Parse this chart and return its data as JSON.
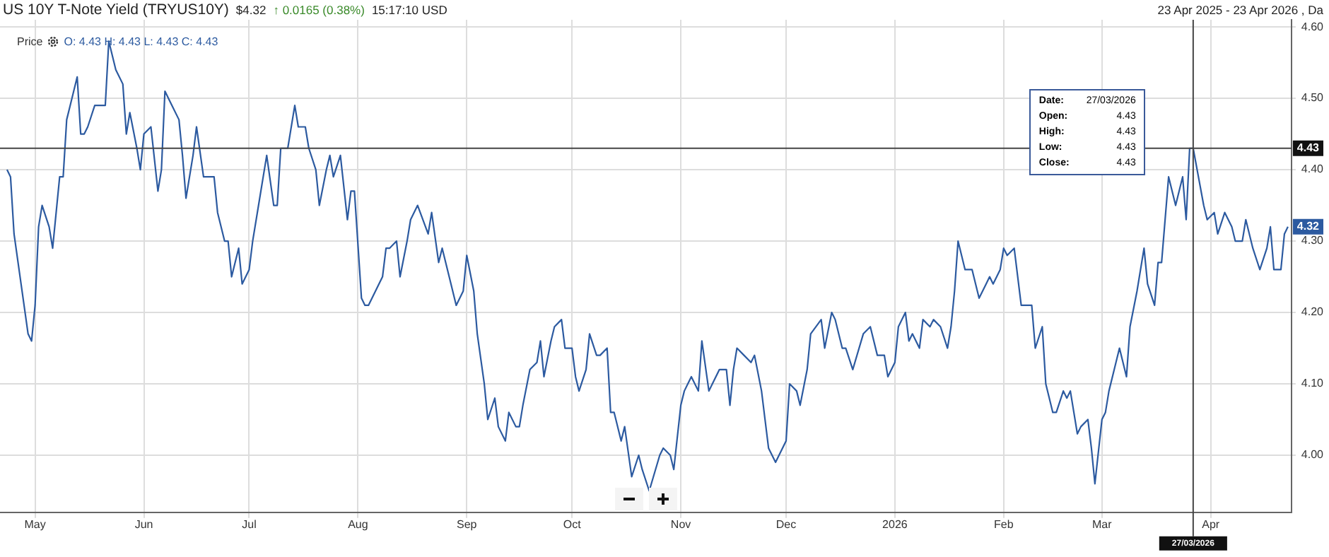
{
  "chart_data": {
    "type": "line",
    "title": "US 10Y T-Note Yield (TRYUS10Y)",
    "subtitle": "$4.32",
    "annotations": [
      "↑ 0.0165 (0.38%)",
      "15:17:10 USD",
      "23 Apr 2025 - 23 Apr 2026 , Da",
      "Price",
      "O: 4.43 H: 4.43 L: 4.43 C: 4.43",
      "Date:",
      "27/03/2026",
      "Open:",
      "4.43",
      "High:",
      "4.43",
      "Low:",
      "4.43",
      "Close:",
      "4.43",
      {
        "text": "4.32",
        "x": "2026-04-23",
        "y": 4.32
      }
    ],
    "x": [
      "2025-04-23",
      "2025-04-24",
      "2025-04-25",
      "2025-04-27",
      "2025-04-29",
      "2025-04-30",
      "2025-05-01",
      "2025-05-02",
      "2025-05-03",
      "2025-05-05",
      "2025-05-06",
      "2025-05-08",
      "2025-05-09",
      "2025-05-10",
      "2025-05-11",
      "2025-05-13",
      "2025-05-14",
      "2025-05-15",
      "2025-05-16",
      "2025-05-18",
      "2025-05-21",
      "2025-05-22",
      "2025-05-24",
      "2025-05-26",
      "2025-05-27",
      "2025-05-28",
      "2025-05-30",
      "2025-05-31",
      "2025-06-01",
      "2025-06-03",
      "2025-06-05",
      "2025-06-06",
      "2025-06-07",
      "2025-06-09",
      "2025-06-11",
      "2025-06-12",
      "2025-06-13",
      "2025-06-15",
      "2025-06-16",
      "2025-06-18",
      "2025-06-20",
      "2025-06-21",
      "2025-06-22",
      "2025-06-24",
      "2025-06-25",
      "2025-06-26",
      "2025-06-28",
      "2025-06-29",
      "2025-07-01",
      "2025-07-02",
      "2025-07-04",
      "2025-07-05",
      "2025-07-06",
      "2025-07-08",
      "2025-07-09",
      "2025-07-10",
      "2025-07-12",
      "2025-07-14",
      "2025-07-15",
      "2025-07-17",
      "2025-07-18",
      "2025-07-20",
      "2025-07-21",
      "2025-07-23",
      "2025-07-24",
      "2025-07-25",
      "2025-07-27",
      "2025-07-29",
      "2025-07-30",
      "2025-07-31",
      "2025-08-02",
      "2025-08-03",
      "2025-08-04",
      "2025-08-06",
      "2025-08-08",
      "2025-08-09",
      "2025-08-10",
      "2025-08-12",
      "2025-08-13",
      "2025-08-15",
      "2025-08-16",
      "2025-08-18",
      "2025-08-21",
      "2025-08-22",
      "2025-08-24",
      "2025-08-25",
      "2025-08-27",
      "2025-08-29",
      "2025-08-31",
      "2025-09-01",
      "2025-09-03",
      "2025-09-04",
      "2025-09-06",
      "2025-09-07",
      "2025-09-09",
      "2025-09-10",
      "2025-09-12",
      "2025-09-13",
      "2025-09-15",
      "2025-09-16",
      "2025-09-17",
      "2025-09-19",
      "2025-09-21",
      "2025-09-22",
      "2025-09-23",
      "2025-09-25",
      "2025-09-26",
      "2025-09-28",
      "2025-09-29",
      "2025-10-01",
      "2025-10-02",
      "2025-10-03",
      "2025-10-05",
      "2025-10-06",
      "2025-10-08",
      "2025-10-09",
      "2025-10-11",
      "2025-10-12",
      "2025-10-13",
      "2025-10-15",
      "2025-10-16",
      "2025-10-18",
      "2025-10-20",
      "2025-10-21",
      "2025-10-23",
      "2025-10-26",
      "2025-10-27",
      "2025-10-29",
      "2025-10-30",
      "2025-11-01",
      "2025-11-02",
      "2025-11-03",
      "2025-11-04",
      "2025-11-06",
      "2025-11-07",
      "2025-11-09",
      "2025-11-10",
      "2025-11-12",
      "2025-11-14",
      "2025-11-15",
      "2025-11-16",
      "2025-11-17",
      "2025-11-19",
      "2025-11-21",
      "2025-11-22",
      "2025-11-24",
      "2025-11-25",
      "2025-11-26",
      "2025-11-28",
      "2025-12-01",
      "2025-12-02",
      "2025-12-04",
      "2025-12-05",
      "2025-12-07",
      "2025-12-08",
      "2025-12-11",
      "2025-12-12",
      "2025-12-14",
      "2025-12-15",
      "2025-12-17",
      "2025-12-18",
      "2025-12-20",
      "2025-12-23",
      "2025-12-25",
      "2025-12-27",
      "2025-12-29",
      "2025-12-30",
      "2026-01-01",
      "2026-01-02",
      "2026-01-04",
      "2026-01-05",
      "2026-01-06",
      "2026-01-08",
      "2026-01-09",
      "2026-01-11",
      "2026-01-12",
      "2026-01-14",
      "2026-01-16",
      "2026-01-17",
      "2026-01-18",
      "2026-01-19",
      "2026-01-21",
      "2026-01-23",
      "2026-01-24",
      "2026-01-25",
      "2026-01-27",
      "2026-01-28",
      "2026-01-29",
      "2026-01-31",
      "2026-02-01",
      "2026-02-02",
      "2026-02-04",
      "2026-02-06",
      "2026-02-07",
      "2026-02-09",
      "2026-02-10",
      "2026-02-12",
      "2026-02-13",
      "2026-02-15",
      "2026-02-16",
      "2026-02-18",
      "2026-02-19",
      "2026-02-20",
      "2026-02-22",
      "2026-02-23",
      "2026-02-25",
      "2026-02-26",
      "2026-02-27",
      "2026-03-01",
      "2026-03-02",
      "2026-03-03",
      "2026-03-05",
      "2026-03-06",
      "2026-03-08",
      "2026-03-09",
      "2026-03-11",
      "2026-03-13",
      "2026-03-14",
      "2026-03-16",
      "2026-03-17",
      "2026-03-18",
      "2026-03-20",
      "2026-03-22",
      "2026-03-24",
      "2026-03-25",
      "2026-03-26",
      "2026-03-27",
      "2026-03-30",
      "2026-03-31",
      "2026-04-02",
      "2026-04-03",
      "2026-04-05",
      "2026-04-07",
      "2026-04-08",
      "2026-04-10",
      "2026-04-11",
      "2026-04-13",
      "2026-04-15",
      "2026-04-17",
      "2026-04-18",
      "2026-04-19",
      "2026-04-21",
      "2026-04-22",
      "2026-04-23"
    ],
    "values": [
      4.4,
      4.39,
      4.31,
      4.24,
      4.17,
      4.16,
      4.21,
      4.32,
      4.35,
      4.32,
      4.29,
      4.39,
      4.39,
      4.47,
      4.49,
      4.53,
      4.45,
      4.45,
      4.46,
      4.49,
      4.49,
      4.58,
      4.54,
      4.52,
      4.45,
      4.48,
      4.43,
      4.4,
      4.45,
      4.46,
      4.37,
      4.4,
      4.51,
      4.49,
      4.47,
      4.42,
      4.36,
      4.42,
      4.46,
      4.39,
      4.39,
      4.39,
      4.34,
      4.3,
      4.3,
      4.25,
      4.29,
      4.24,
      4.26,
      4.3,
      4.36,
      4.39,
      4.42,
      4.35,
      4.35,
      4.43,
      4.43,
      4.49,
      4.46,
      4.46,
      4.43,
      4.4,
      4.35,
      4.4,
      4.42,
      4.39,
      4.42,
      4.33,
      4.37,
      4.37,
      4.22,
      4.21,
      4.21,
      4.23,
      4.25,
      4.29,
      4.29,
      4.3,
      4.25,
      4.3,
      4.33,
      4.35,
      4.31,
      4.34,
      4.27,
      4.29,
      4.25,
      4.21,
      4.23,
      4.28,
      4.23,
      4.17,
      4.1,
      4.05,
      4.08,
      4.04,
      4.02,
      4.06,
      4.04,
      4.04,
      4.07,
      4.12,
      4.13,
      4.16,
      4.11,
      4.16,
      4.18,
      4.19,
      4.15,
      4.15,
      4.11,
      4.09,
      4.12,
      4.17,
      4.14,
      4.14,
      4.15,
      4.06,
      4.06,
      4.02,
      4.04,
      3.97,
      4.0,
      3.98,
      3.95,
      4.0,
      4.01,
      4.0,
      3.98,
      4.07,
      4.09,
      4.1,
      4.11,
      4.09,
      4.16,
      4.09,
      4.1,
      4.12,
      4.12,
      4.07,
      4.12,
      4.15,
      4.14,
      4.13,
      4.14,
      4.09,
      4.05,
      4.01,
      3.99,
      4.02,
      4.1,
      4.09,
      4.07,
      4.12,
      4.17,
      4.19,
      4.15,
      4.2,
      4.19,
      4.15,
      4.15,
      4.12,
      4.17,
      4.18,
      4.14,
      4.14,
      4.11,
      4.13,
      4.18,
      4.2,
      4.16,
      4.17,
      4.15,
      4.19,
      4.18,
      4.19,
      4.18,
      4.15,
      4.18,
      4.23,
      4.3,
      4.26,
      4.26,
      4.24,
      4.22,
      4.24,
      4.25,
      4.24,
      4.26,
      4.29,
      4.28,
      4.29,
      4.21,
      4.21,
      4.21,
      4.15,
      4.18,
      4.1,
      4.06,
      4.06,
      4.09,
      4.08,
      4.09,
      4.03,
      4.04,
      4.05,
      4.01,
      3.96,
      4.05,
      4.06,
      4.09,
      4.13,
      4.15,
      4.11,
      4.18,
      4.23,
      4.29,
      4.24,
      4.21,
      4.27,
      4.27,
      4.39,
      4.35,
      4.39,
      4.33,
      4.43,
      4.43,
      4.35,
      4.33,
      4.34,
      4.31,
      4.34,
      4.32,
      4.3,
      4.3,
      4.33,
      4.29,
      4.26,
      4.29,
      4.32,
      4.26,
      4.26,
      4.31,
      4.32
    ],
    "color": "#2c5aa0",
    "marker": "none",
    "line_style": "solid",
    "grid": true,
    "legend": false,
    "xlim": [
      "2025-04-21",
      "2026-04-24"
    ],
    "xticks": [
      {
        "value": "2025-05-01",
        "label": "May"
      },
      {
        "value": "2025-06-01",
        "label": "Jun"
      },
      {
        "value": "2025-07-01",
        "label": "Jul"
      },
      {
        "value": "2025-08-01",
        "label": "Aug"
      },
      {
        "value": "2025-09-01",
        "label": "Sep"
      },
      {
        "value": "2025-10-01",
        "label": "Oct"
      },
      {
        "value": "2025-11-01",
        "label": "Nov"
      },
      {
        "value": "2025-12-01",
        "label": "Dec"
      },
      {
        "value": "2026-01-01",
        "label": "2026"
      },
      {
        "value": "2026-02-01",
        "label": "Feb"
      },
      {
        "value": "2026-03-01",
        "label": "Mar"
      },
      {
        "value": "2026-04-01",
        "label": "Apr"
      }
    ],
    "ylim": [
      3.92,
      4.61
    ],
    "yticks": [
      {
        "value": 4,
        "label": "4.00"
      },
      {
        "value": 4.1,
        "label": "4.10"
      },
      {
        "value": 4.2,
        "label": "4.20"
      },
      {
        "value": 4.3,
        "label": "4.30"
      },
      {
        "value": 4.4,
        "label": "4.40"
      },
      {
        "value": 4.5,
        "label": "4.50"
      },
      {
        "value": 4.6,
        "label": "4.60"
      }
    ],
    "ref_lines": [
      {
        "axis": "y",
        "value": 4.43,
        "label": "4.43",
        "color": "#444444"
      },
      {
        "axis": "x",
        "value": "2026-03-27",
        "label": "27/03/2026",
        "color": "#444444"
      }
    ]
  }
}
